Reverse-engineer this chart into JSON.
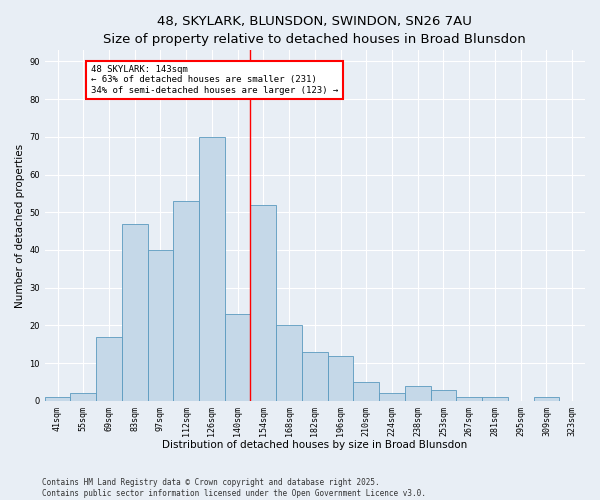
{
  "title1": "48, SKYLARK, BLUNSDON, SWINDON, SN26 7AU",
  "title2": "Size of property relative to detached houses in Broad Blunsdon",
  "xlabel": "Distribution of detached houses by size in Broad Blunsdon",
  "ylabel": "Number of detached properties",
  "bar_labels": [
    "41sqm",
    "55sqm",
    "69sqm",
    "83sqm",
    "97sqm",
    "112sqm",
    "126sqm",
    "140sqm",
    "154sqm",
    "168sqm",
    "182sqm",
    "196sqm",
    "210sqm",
    "224sqm",
    "238sqm",
    "253sqm",
    "267sqm",
    "281sqm",
    "295sqm",
    "309sqm",
    "323sqm"
  ],
  "bar_values": [
    1,
    2,
    17,
    47,
    40,
    53,
    70,
    23,
    52,
    20,
    13,
    12,
    5,
    2,
    4,
    3,
    1,
    1,
    0,
    1,
    0
  ],
  "bar_color": "#c5d8e8",
  "bar_edge_color": "#5a9abf",
  "property_line_x": 7.5,
  "annotation_text": "48 SKYLARK: 143sqm\n← 63% of detached houses are smaller (231)\n34% of semi-detached houses are larger (123) →",
  "annotation_box_color": "white",
  "annotation_box_edge_color": "red",
  "vline_color": "red",
  "ylim": [
    0,
    93
  ],
  "yticks": [
    0,
    10,
    20,
    30,
    40,
    50,
    60,
    70,
    80,
    90
  ],
  "bg_color": "#e8eef5",
  "footer_line1": "Contains HM Land Registry data © Crown copyright and database right 2025.",
  "footer_line2": "Contains public sector information licensed under the Open Government Licence v3.0.",
  "title1_fontsize": 9.5,
  "title2_fontsize": 8.5,
  "xlabel_fontsize": 7.5,
  "ylabel_fontsize": 7.5,
  "tick_fontsize": 6.0,
  "annotation_fontsize": 6.5,
  "footer_fontsize": 5.5
}
